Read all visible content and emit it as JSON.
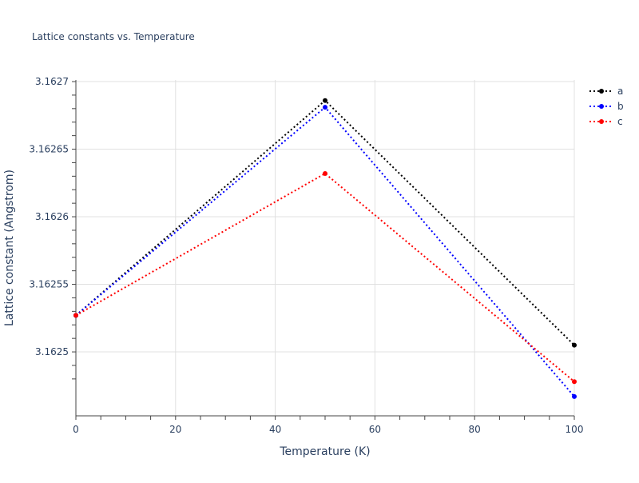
{
  "chart_data": {
    "type": "line",
    "title": "Lattice constants vs. Temperature",
    "xlabel": "Temperature (K)",
    "ylabel": "Lattice constant (Angstrom)",
    "x": [
      0,
      50,
      100
    ],
    "xlim": [
      0,
      100
    ],
    "ylim": [
      3.1624527,
      3.1627012
    ],
    "xticks": [
      0,
      20,
      40,
      60,
      80,
      100
    ],
    "xtick_labels": [
      "0",
      "20",
      "40",
      "60",
      "80",
      "100"
    ],
    "yticks": [
      3.1625,
      3.16255,
      3.1626,
      3.16265,
      3.1627
    ],
    "ytick_labels": [
      "3.1625",
      "3.16255",
      "3.1626",
      "3.16265",
      "3.1627"
    ],
    "grid": true,
    "legend_position": "top-right",
    "series": [
      {
        "name": "a",
        "color": "#000000",
        "values": [
          3.162527,
          3.162686,
          3.162505
        ]
      },
      {
        "name": "b",
        "color": "#0000ff",
        "values": [
          3.162527,
          3.162681,
          3.162467
        ]
      },
      {
        "name": "c",
        "color": "#ff0000",
        "values": [
          3.162527,
          3.162632,
          3.162478
        ]
      }
    ]
  }
}
